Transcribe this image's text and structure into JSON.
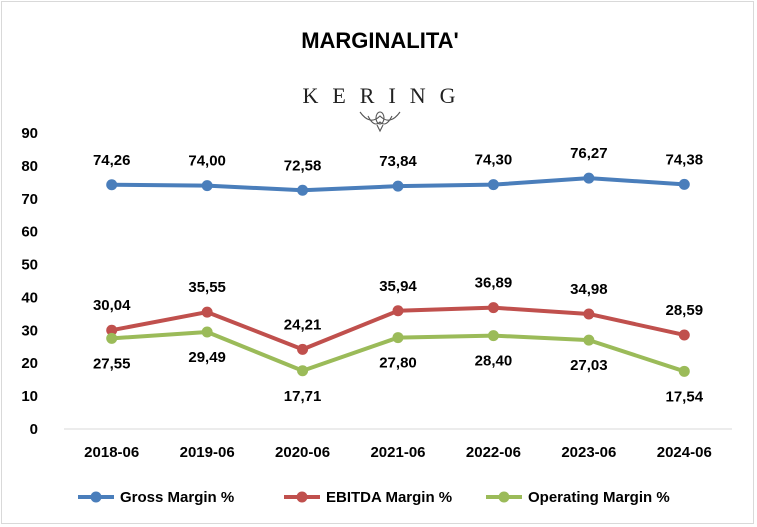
{
  "chart_data": {
    "type": "line",
    "title": "MARGINALITA'",
    "logo_text": "KERING",
    "categories": [
      "2018-06",
      "2019-06",
      "2020-06",
      "2021-06",
      "2022-06",
      "2023-06",
      "2024-06"
    ],
    "yticks": [
      "0",
      "10",
      "20",
      "30",
      "40",
      "50",
      "60",
      "70",
      "80",
      "90"
    ],
    "ylim": [
      0,
      90
    ],
    "grid": false,
    "legend_position": "bottom",
    "series": [
      {
        "name": "Gross Margin %",
        "color": "#4a7ebb",
        "values": [
          74.26,
          74.0,
          72.58,
          73.84,
          74.3,
          76.27,
          74.38
        ],
        "labels": [
          "74,26",
          "74,00",
          "72,58",
          "73,84",
          "74,30",
          "76,27",
          "74,38"
        ],
        "label_position": "above"
      },
      {
        "name": "EBITDA Margin %",
        "color": "#c0504d",
        "values": [
          30.04,
          35.55,
          24.21,
          35.94,
          36.89,
          34.98,
          28.59
        ],
        "labels": [
          "30,04",
          "35,55",
          "24,21",
          "35,94",
          "36,89",
          "34,98",
          "28,59"
        ],
        "label_position": "above"
      },
      {
        "name": "Operating Margin %",
        "color": "#9bbb59",
        "values": [
          27.55,
          29.49,
          17.71,
          27.8,
          28.4,
          27.03,
          17.54
        ],
        "labels": [
          "27,55",
          "29,49",
          "17,71",
          "27,80",
          "28,40",
          "27,03",
          "17,54"
        ],
        "label_position": "below"
      }
    ]
  }
}
